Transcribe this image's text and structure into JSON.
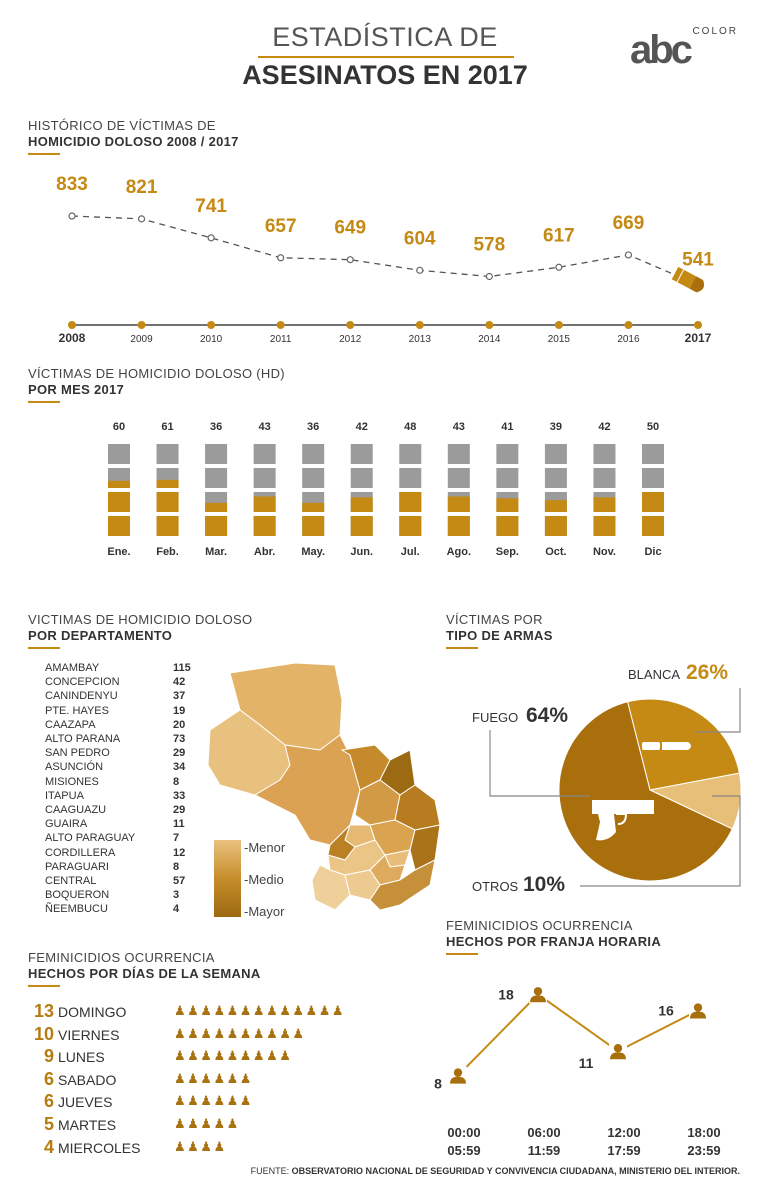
{
  "header": {
    "title_line1": "ESTADÍSTICA DE",
    "title_line2": "ASESINATOS EN 2017",
    "logo_text": "abc",
    "logo_sub": "COLOR"
  },
  "colors": {
    "gold": "#c58a14",
    "gold_dark": "#a86f0c",
    "gray": "#9b9b9b",
    "map_light": "#e7bd72",
    "map_dark": "#9c6a12"
  },
  "historic": {
    "title_line1": "HISTÓRICO DE VÍCTIMAS DE",
    "title_line2": "HOMICIDIO DOLOSO 2008 / 2017"
  },
  "monthly": {
    "title_line1": "VÍCTIMAS DE HOMICIDIO DOLOSO (HD)",
    "title_line2": "POR MES 2017"
  },
  "departments": {
    "title_line1": "VICTIMAS DE HOMICIDIO DOLOSO",
    "title_line2": "POR DEPARTAMENTO",
    "legend": [
      "-Menor",
      "-Medio",
      "-Mayor"
    ],
    "rows": [
      {
        "name": "AMAMBAY",
        "value": "115"
      },
      {
        "name": "CONCEPCION",
        "value": "42"
      },
      {
        "name": "CANINDENYU",
        "value": "37"
      },
      {
        "name": "PTE. HAYES",
        "value": "19"
      },
      {
        "name": "CAAZAPA",
        "value": "20"
      },
      {
        "name": "ALTO PARANA",
        "value": "73"
      },
      {
        "name": "SAN PEDRO",
        "value": "29"
      },
      {
        "name": "ASUNCIÓN",
        "value": "34"
      },
      {
        "name": "MISIONES",
        "value": "8"
      },
      {
        "name": "ITAPUA",
        "value": "33"
      },
      {
        "name": "CAAGUAZU",
        "value": "29"
      },
      {
        "name": "GUAIRA",
        "value": "11"
      },
      {
        "name": "ALTO PARAGUAY",
        "value": "7"
      },
      {
        "name": "CORDILLERA",
        "value": "12"
      },
      {
        "name": "PARAGUARI",
        "value": "8"
      },
      {
        "name": "CENTRAL",
        "value": "57"
      },
      {
        "name": "BOQUERON",
        "value": "3"
      },
      {
        "name": "ÑEEMBUCU",
        "value": "4"
      }
    ]
  },
  "weapons": {
    "title_line1": "VÍCTIMAS POR",
    "title_line2": "TIPO DE ARMAS"
  },
  "weekdays": {
    "title_line1": "FEMINICIDIOS OCURRENCIA",
    "title_line2": "HECHOS POR DÍAS DE LA SEMANA",
    "rows": [
      {
        "count": "13",
        "day": "DOMINGO",
        "icons": "♟♟♟♟♟♟♟♟♟♟♟♟♟"
      },
      {
        "count": "10",
        "day": "VIERNES",
        "icons": "♟♟♟♟♟♟♟♟♟♟"
      },
      {
        "count": "9",
        "day": "LUNES",
        "icons": "♟♟♟♟♟♟♟♟♟"
      },
      {
        "count": "6",
        "day": "SABADO",
        "icons": "♟♟♟♟♟♟"
      },
      {
        "count": "6",
        "day": "JUEVES",
        "icons": "♟♟♟♟♟♟"
      },
      {
        "count": "5",
        "day": "MARTES",
        "icons": "♟♟♟♟♟"
      },
      {
        "count": "4",
        "day": "MIERCOLES",
        "icons": "♟♟♟♟"
      }
    ]
  },
  "hours": {
    "title_line1": "FEMINICIDIOS OCURRENCIA",
    "title_line2": "HECHOS POR FRANJA HORARIA"
  },
  "footer": {
    "prefix": "FUENTE: ",
    "source": "OBSERVATORIO NACIONAL DE SEGURIDAD Y CONVIVENCIA CIUDADANA, MINISTERIO DEL INTERIOR."
  },
  "chart_data": [
    {
      "type": "line",
      "title": "HOMICIDIO DOLOSO 2008 / 2017",
      "x": [
        "2008",
        "2009",
        "2010",
        "2011",
        "2012",
        "2013",
        "2014",
        "2015",
        "2016",
        "2017"
      ],
      "values": [
        833,
        821,
        741,
        657,
        649,
        604,
        578,
        617,
        669,
        541
      ],
      "ylim": [
        500,
        850
      ]
    },
    {
      "type": "bar",
      "title": "POR MES 2017",
      "categories": [
        "Ene.",
        "Feb.",
        "Mar.",
        "Abr.",
        "May.",
        "Jun.",
        "Jul.",
        "Ago.",
        "Sep.",
        "Oct.",
        "Nov.",
        "Dic"
      ],
      "values": [
        60,
        61,
        36,
        43,
        36,
        42,
        48,
        43,
        41,
        39,
        42,
        50
      ],
      "ylim": [
        0,
        100
      ]
    },
    {
      "type": "pie",
      "title": "TIPO DE ARMAS",
      "slices": [
        {
          "label": "FUEGO",
          "value": 64,
          "text": "64%",
          "color": "#a86f0c"
        },
        {
          "label": "BLANCA",
          "value": 26,
          "text": "26%",
          "color": "#c58a14"
        },
        {
          "label": "OTROS",
          "value": 10,
          "text": "10%",
          "color": "#e8bf78"
        }
      ]
    },
    {
      "type": "line",
      "title": "HECHOS POR FRANJA HORARIA",
      "categories": [
        [
          "00:00",
          "05:59"
        ],
        [
          "06:00",
          "11:59"
        ],
        [
          "12:00",
          "17:59"
        ],
        [
          "18:00",
          "23:59"
        ]
      ],
      "values": [
        8,
        18,
        11,
        16
      ],
      "ylim": [
        5,
        20
      ]
    }
  ]
}
